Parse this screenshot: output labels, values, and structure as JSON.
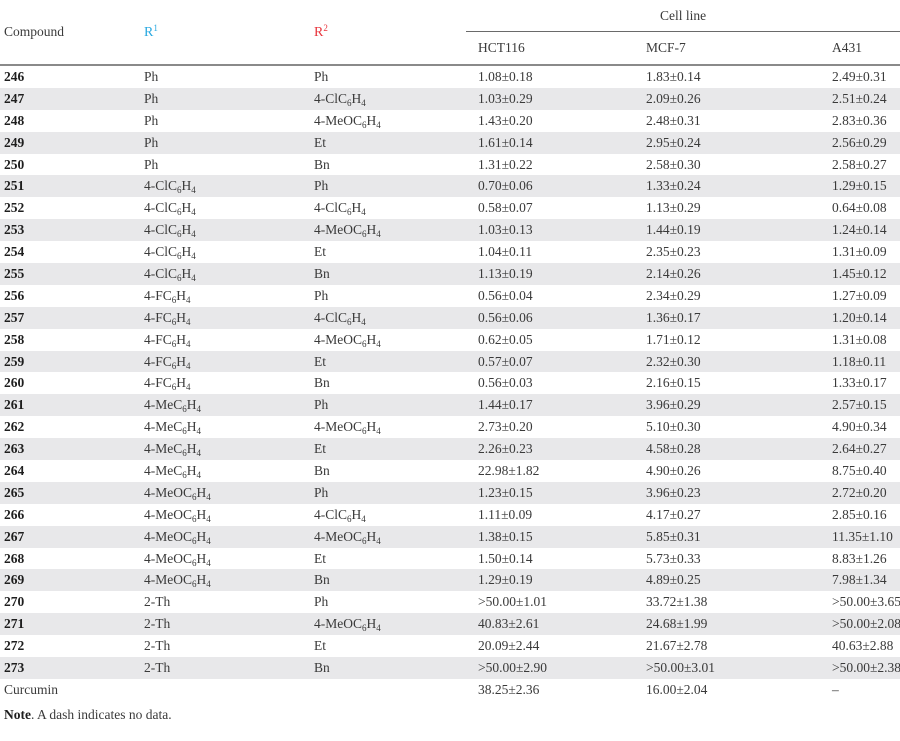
{
  "table": {
    "headers": {
      "compound": "Compound",
      "r1": "R",
      "r1_sup": "1",
      "r2": "R",
      "r2_sup": "2",
      "group": "Cell line",
      "cell_lines": [
        "HCT116",
        "MCF-7",
        "A431"
      ]
    },
    "colors": {
      "r1_header": "#29a8e0",
      "r2_header": "#e8343c",
      "stripe": "#e8e8ea"
    },
    "rows": [
      {
        "compound": "246",
        "r1": "Ph",
        "r2": "Ph",
        "hct116": "1.08±0.18",
        "mcf7": "1.83±0.14",
        "a431": "2.49±0.31"
      },
      {
        "compound": "247",
        "r1": "Ph",
        "r2": "4-ClC6H4",
        "hct116": "1.03±0.29",
        "mcf7": "2.09±0.26",
        "a431": "2.51±0.24"
      },
      {
        "compound": "248",
        "r1": "Ph",
        "r2": "4-MeOC6H4",
        "hct116": "1.43±0.20",
        "mcf7": "2.48±0.31",
        "a431": "2.83±0.36"
      },
      {
        "compound": "249",
        "r1": "Ph",
        "r2": "Et",
        "hct116": "1.61±0.14",
        "mcf7": "2.95±0.24",
        "a431": "2.56±0.29"
      },
      {
        "compound": "250",
        "r1": "Ph",
        "r2": "Bn",
        "hct116": "1.31±0.22",
        "mcf7": "2.58±0.30",
        "a431": "2.58±0.27"
      },
      {
        "compound": "251",
        "r1": "4-ClC6H4",
        "r2": "Ph",
        "hct116": "0.70±0.06",
        "mcf7": "1.33±0.24",
        "a431": "1.29±0.15"
      },
      {
        "compound": "252",
        "r1": "4-ClC6H4",
        "r2": "4-ClC6H4",
        "hct116": "0.58±0.07",
        "mcf7": "1.13±0.29",
        "a431": "0.64±0.08"
      },
      {
        "compound": "253",
        "r1": "4-ClC6H4",
        "r2": "4-MeOC6H4",
        "hct116": "1.03±0.13",
        "mcf7": "1.44±0.19",
        "a431": "1.24±0.14"
      },
      {
        "compound": "254",
        "r1": "4-ClC6H4",
        "r2": "Et",
        "hct116": "1.04±0.11",
        "mcf7": "2.35±0.23",
        "a431": "1.31±0.09"
      },
      {
        "compound": "255",
        "r1": "4-ClC6H4",
        "r2": "Bn",
        "hct116": "1.13±0.19",
        "mcf7": "2.14±0.26",
        "a431": "1.45±0.12"
      },
      {
        "compound": "256",
        "r1": "4-FC6H4",
        "r2": "Ph",
        "hct116": "0.56±0.04",
        "mcf7": "2.34±0.29",
        "a431": "1.27±0.09"
      },
      {
        "compound": "257",
        "r1": "4-FC6H4",
        "r2": "4-ClC6H4",
        "hct116": "0.56±0.06",
        "mcf7": "1.36±0.17",
        "a431": "1.20±0.14"
      },
      {
        "compound": "258",
        "r1": "4-FC6H4",
        "r2": "4-MeOC6H4",
        "hct116": "0.62±0.05",
        "mcf7": "1.71±0.12",
        "a431": "1.31±0.08"
      },
      {
        "compound": "259",
        "r1": "4-FC6H4",
        "r2": "Et",
        "hct116": "0.57±0.07",
        "mcf7": "2.32±0.30",
        "a431": "1.18±0.11"
      },
      {
        "compound": "260",
        "r1": "4-FC6H4",
        "r2": "Bn",
        "hct116": "0.56±0.03",
        "mcf7": "2.16±0.15",
        "a431": "1.33±0.17"
      },
      {
        "compound": "261",
        "r1": "4-MeC6H4",
        "r2": "Ph",
        "hct116": "1.44±0.17",
        "mcf7": "3.96±0.29",
        "a431": "2.57±0.15"
      },
      {
        "compound": "262",
        "r1": "4-MeC6H4",
        "r2": "4-MeOC6H4",
        "hct116": "2.73±0.20",
        "mcf7": "5.10±0.30",
        "a431": "4.90±0.34"
      },
      {
        "compound": "263",
        "r1": "4-MeC6H4",
        "r2": "Et",
        "hct116": "2.26±0.23",
        "mcf7": "4.58±0.28",
        "a431": "2.64±0.27"
      },
      {
        "compound": "264",
        "r1": "4-MeC6H4",
        "r2": "Bn",
        "hct116": "22.98±1.82",
        "mcf7": "4.90±0.26",
        "a431": "8.75±0.40"
      },
      {
        "compound": "265",
        "r1": "4-MeOC6H4",
        "r2": "Ph",
        "hct116": "1.23±0.15",
        "mcf7": "3.96±0.23",
        "a431": "2.72±0.20"
      },
      {
        "compound": "266",
        "r1": "4-MeOC6H4",
        "r2": "4-ClC6H4",
        "hct116": "1.11±0.09",
        "mcf7": "4.17±0.27",
        "a431": "2.85±0.16"
      },
      {
        "compound": "267",
        "r1": "4-MeOC6H4",
        "r2": "4-MeOC6H4",
        "hct116": "1.38±0.15",
        "mcf7": "5.85±0.31",
        "a431": "11.35±1.10"
      },
      {
        "compound": "268",
        "r1": "4-MeOC6H4",
        "r2": "Et",
        "hct116": "1.50±0.14",
        "mcf7": "5.73±0.33",
        "a431": "8.83±1.26"
      },
      {
        "compound": "269",
        "r1": "4-MeOC6H4",
        "r2": "Bn",
        "hct116": "1.29±0.19",
        "mcf7": "4.89±0.25",
        "a431": "7.98±1.34"
      },
      {
        "compound": "270",
        "r1": "2-Th",
        "r2": "Ph",
        "hct116": ">50.00±1.01",
        "mcf7": "33.72±1.38",
        "a431": ">50.00±3.65"
      },
      {
        "compound": "271",
        "r1": "2-Th",
        "r2": "4-MeOC6H4",
        "hct116": "40.83±2.61",
        "mcf7": "24.68±1.99",
        "a431": ">50.00±2.08"
      },
      {
        "compound": "272",
        "r1": "2-Th",
        "r2": "Et",
        "hct116": "20.09±2.44",
        "mcf7": "21.67±2.78",
        "a431": "40.63±2.88"
      },
      {
        "compound": "273",
        "r1": "2-Th",
        "r2": "Bn",
        "hct116": ">50.00±2.90",
        "mcf7": ">50.00±3.01",
        "a431": ">50.00±2.38"
      }
    ],
    "reference": {
      "compound": "Curcumin",
      "r1": "",
      "r2": "",
      "hct116": "38.25±2.36",
      "mcf7": "16.00±2.04",
      "a431": "–"
    }
  },
  "note": {
    "label": "Note",
    "text": ". A dash indicates no data."
  }
}
